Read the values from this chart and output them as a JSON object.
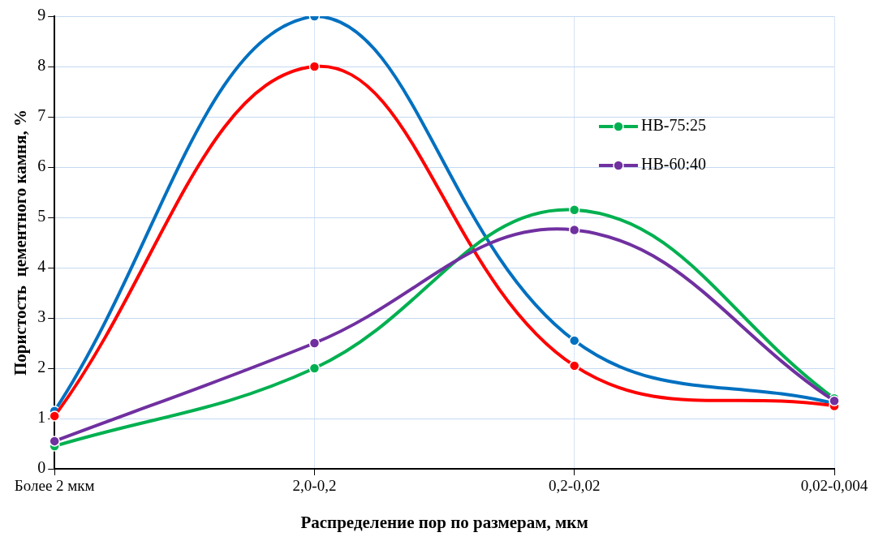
{
  "chart_data": {
    "type": "line",
    "xlabel": "Распределение пор по размерам, мкм",
    "ylabel": "Пористость  цементного камня, %",
    "categories": [
      "Более 2 мкм",
      "2,0-0,2",
      "0,2-0,02",
      "0,02-0,004"
    ],
    "series": [
      {
        "color": "#0070c0",
        "values": [
          1.15,
          9.0,
          2.55,
          1.3
        ]
      },
      {
        "color": "#ff0000",
        "values": [
          1.05,
          8.0,
          2.05,
          1.25
        ]
      },
      {
        "name": "НВ-75:25",
        "color": "#00b050",
        "values": [
          0.45,
          2.0,
          5.15,
          1.4
        ]
      },
      {
        "name": "НВ-60:40",
        "color": "#7030a0",
        "values": [
          0.55,
          2.5,
          4.75,
          1.35
        ]
      }
    ],
    "ylim": [
      0,
      9
    ],
    "yticks": [
      0,
      1,
      2,
      3,
      4,
      5,
      6,
      7,
      8,
      9
    ],
    "grid": true,
    "legend": "top right",
    "marker": "circle",
    "line_style": "solid"
  }
}
